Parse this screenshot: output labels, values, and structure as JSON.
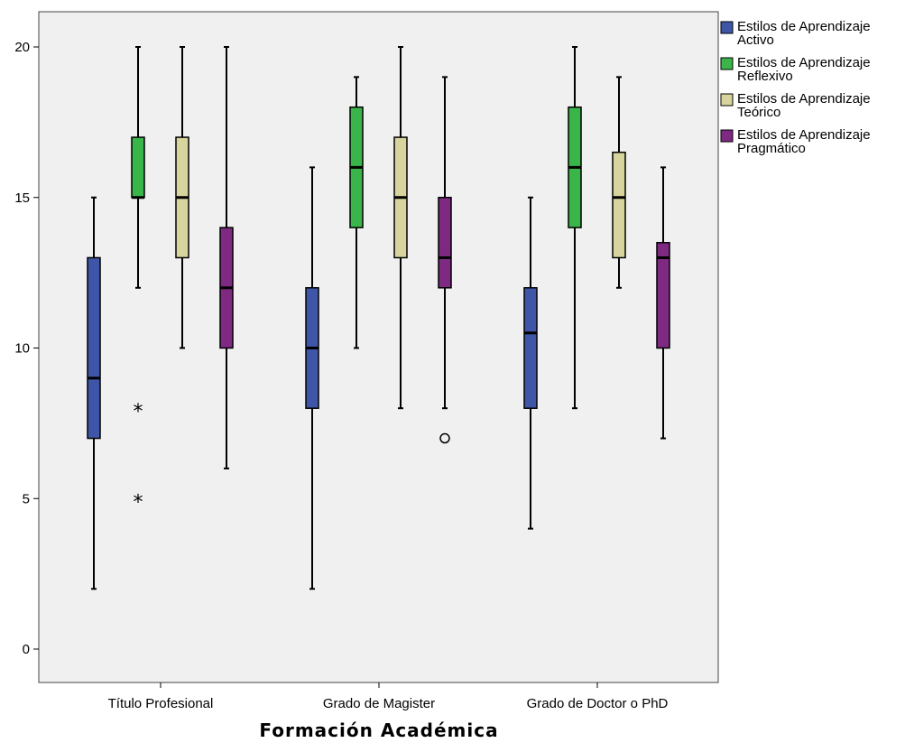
{
  "chart_data": {
    "type": "boxplot",
    "title": "",
    "xlabel": "Formación  Académica",
    "ylabel": "",
    "ylim": [
      -1,
      21
    ],
    "yticks": [
      0,
      5,
      10,
      15,
      20
    ],
    "grid": false,
    "legend_position": "right",
    "categories": [
      "Título Profesional",
      "Grado de Magister",
      "Grado de Doctor o PhD"
    ],
    "series": [
      {
        "name": "Estilos de Aprendizaje Activo",
        "legend_lines": [
          "Estilos de Aprendizaje",
          "Activo"
        ],
        "color": "#3f56a8",
        "boxes": [
          {
            "min": 2,
            "q1": 7,
            "median": 9,
            "q3": 13,
            "max": 15,
            "outliers": []
          },
          {
            "min": 2,
            "q1": 8,
            "median": 10,
            "q3": 12,
            "max": 16,
            "outliers": []
          },
          {
            "min": 4,
            "q1": 8,
            "median": 10.5,
            "q3": 12,
            "max": 15,
            "outliers": []
          }
        ]
      },
      {
        "name": "Estilos de Aprendizaje Reflexivo",
        "legend_lines": [
          "Estilos de Aprendizaje",
          "Reflexivo"
        ],
        "color": "#3ab54a",
        "boxes": [
          {
            "min": 12,
            "q1": 15,
            "median": 15,
            "q3": 17,
            "max": 20,
            "outliers": [
              {
                "value": 8,
                "marker": "*"
              },
              {
                "value": 5,
                "marker": "*"
              }
            ]
          },
          {
            "min": 10,
            "q1": 14,
            "median": 16,
            "q3": 18,
            "max": 19,
            "outliers": []
          },
          {
            "min": 8,
            "q1": 14,
            "median": 16,
            "q3": 18,
            "max": 20,
            "outliers": []
          }
        ]
      },
      {
        "name": "Estilos de Aprendizaje Teórico",
        "legend_lines": [
          "Estilos de Aprendizaje",
          "Teórico"
        ],
        "color": "#d8d49e",
        "boxes": [
          {
            "min": 10,
            "q1": 13,
            "median": 15,
            "q3": 17,
            "max": 20,
            "outliers": []
          },
          {
            "min": 8,
            "q1": 13,
            "median": 15,
            "q3": 17,
            "max": 20,
            "outliers": []
          },
          {
            "min": 12,
            "q1": 13,
            "median": 15,
            "q3": 16.5,
            "max": 19,
            "outliers": []
          }
        ]
      },
      {
        "name": "Estilos de Aprendizaje Pragmático",
        "legend_lines": [
          "Estilos de Aprendizaje",
          "Pragmático"
        ],
        "color": "#7e2a82",
        "boxes": [
          {
            "min": 6,
            "q1": 10,
            "median": 12,
            "q3": 14,
            "max": 20,
            "outliers": []
          },
          {
            "min": 8,
            "q1": 12,
            "median": 13,
            "q3": 15,
            "max": 19,
            "outliers": [
              {
                "value": 7,
                "marker": "o"
              }
            ]
          },
          {
            "min": 7,
            "q1": 10,
            "median": 13,
            "q3": 13.5,
            "max": 16,
            "outliers": []
          }
        ]
      }
    ]
  }
}
